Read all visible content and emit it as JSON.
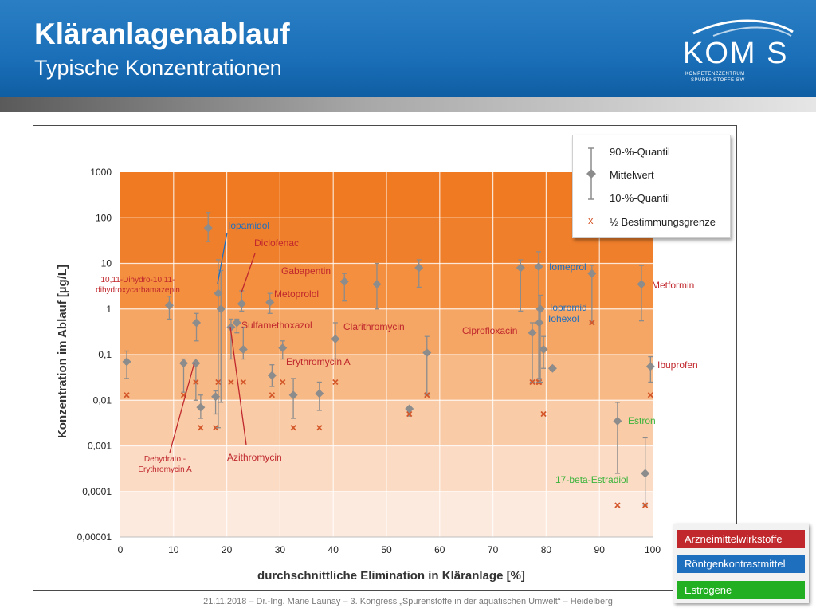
{
  "header": {
    "title": "Kläranlagenablauf",
    "subtitle": "Typische Konzentrationen",
    "logo_text": "KOM S",
    "logo_sub1": "KOMPETENZZENTRUM",
    "logo_sub2": "SPURENSTOFFE-BW"
  },
  "colors": {
    "pharma": "#c0282d",
    "contrast": "#1f6fbf",
    "estrogen": "#3cb43c",
    "marker": "#8c8c8c",
    "detection_limit": "#d4572a"
  },
  "legend": {
    "q90": "90-%-Quantil",
    "mean": "Mittelwert",
    "q10": "10-%-Quantil",
    "half_limit_symbol": "x",
    "half_limit": "½ Bestimmungsgrenze"
  },
  "categories": [
    {
      "label": "Arzneimittelwirkstoffe",
      "color": "#c0282d"
    },
    {
      "label": "Röntgenkontrastmittel",
      "color": "#1f6fbf"
    },
    {
      "label": "Estrogene",
      "color": "#22b022"
    }
  ],
  "footer": "21.11.2018 – Dr.-Ing. Marie Launay – 3. Kongress „Spurenstoffe in der aquatischen Umwelt“ – Heidelberg",
  "chart_data": {
    "type": "scatter",
    "xlabel": "durchschnittliche Elimination in Kläranlage [%]",
    "ylabel": "Konzentration im Ablauf [µg/L]",
    "xlim": [
      0,
      100
    ],
    "ylim": [
      1e-05,
      1000
    ],
    "yscale": "log",
    "x_ticks": [
      "0",
      "10",
      "20",
      "30",
      "40",
      "50",
      "60",
      "70",
      "80",
      "90",
      "100"
    ],
    "y_ticks": [
      "0,00001",
      "0,0001",
      "0,001",
      "0,01",
      "0,1",
      "1",
      "10",
      "100",
      "1000"
    ],
    "points": [
      {
        "x": 1.2,
        "mean": 0.07,
        "q10": 0.03,
        "q90": 0.12,
        "limit": 0.013
      },
      {
        "x": 9.2,
        "mean": 1.2,
        "q10": 0.6,
        "q90": 1.9,
        "limit": null
      },
      {
        "x": 11.9,
        "mean": 0.065,
        "q10": 0.015,
        "q90": 0.08,
        "limit": 0.013
      },
      {
        "x": 14.2,
        "mean": 0.065,
        "q10": 0.01,
        "q90": 0.07,
        "limit": 0.025
      },
      {
        "x": 14.3,
        "mean": 0.5,
        "q10": 0.2,
        "q90": 0.8,
        "limit": null
      },
      {
        "x": 15.1,
        "mean": 0.007,
        "q10": 0.004,
        "q90": 0.013,
        "limit": 0.0025
      },
      {
        "x": 16.5,
        "mean": 60,
        "q10": 30,
        "q90": 130,
        "limit": null
      },
      {
        "x": 17.9,
        "mean": 0.012,
        "q10": 0.005,
        "q90": 0.016,
        "limit": 0.0025
      },
      {
        "x": 18.4,
        "mean": 2.2,
        "q10": 0.0025,
        "q90": 12,
        "limit": 0.025
      },
      {
        "x": 18.9,
        "mean": 1.0,
        "q10": 0.009,
        "q90": 7,
        "limit": null
      },
      {
        "x": 20.8,
        "mean": 0.4,
        "q10": 0.08,
        "q90": 0.6,
        "limit": 0.025
      },
      {
        "x": 21.9,
        "mean": 0.5,
        "q10": 0.3,
        "q90": 0.6,
        "limit": null
      },
      {
        "x": 22.8,
        "mean": 1.3,
        "q10": 0.9,
        "q90": 2.5,
        "limit": null
      },
      {
        "x": 23.1,
        "mean": 0.13,
        "q10": 0.08,
        "q90": 0.4,
        "limit": 0.025
      },
      {
        "x": 28.1,
        "mean": 1.4,
        "q10": 0.8,
        "q90": 2.2,
        "limit": null
      },
      {
        "x": 28.5,
        "mean": 0.035,
        "q10": 0.02,
        "q90": 0.06,
        "limit": 0.013
      },
      {
        "x": 30.5,
        "mean": 0.14,
        "q10": 0.08,
        "q90": 0.2,
        "limit": 0.025
      },
      {
        "x": 32.5,
        "mean": 0.013,
        "q10": 0.004,
        "q90": 0.03,
        "limit": 0.0025
      },
      {
        "x": 37.4,
        "mean": 0.014,
        "q10": 0.006,
        "q90": 0.025,
        "limit": 0.0025
      },
      {
        "x": 40.4,
        "mean": 0.22,
        "q10": 0.08,
        "q90": 0.5,
        "limit": 0.025
      },
      {
        "x": 42.1,
        "mean": 4,
        "q10": 1.5,
        "q90": 6,
        "limit": null
      },
      {
        "x": 48.2,
        "mean": 3.5,
        "q10": 1.0,
        "q90": 10,
        "limit": null
      },
      {
        "x": 54.3,
        "mean": 0.0065,
        "q10": 0.0045,
        "q90": 0.007,
        "limit": 0.005
      },
      {
        "x": 56.1,
        "mean": 8,
        "q10": 3,
        "q90": 12,
        "limit": null
      },
      {
        "x": 57.6,
        "mean": 0.11,
        "q10": 0.013,
        "q90": 0.25,
        "limit": 0.013
      },
      {
        "x": 75.2,
        "mean": 8,
        "q10": 0.9,
        "q90": 12,
        "limit": null
      },
      {
        "x": 77.4,
        "mean": 0.3,
        "q10": 0.025,
        "q90": 0.5,
        "limit": 0.025
      },
      {
        "x": 78.6,
        "mean": 8.5,
        "q10": 0.025,
        "q90": 18,
        "limit": 0.025
      },
      {
        "x": 78.7,
        "mean": 0.5,
        "q10": 0.03,
        "q90": 1.0,
        "limit": 0.025
      },
      {
        "x": 78.9,
        "mean": 1.0,
        "q10": 0.025,
        "q90": 2.0,
        "limit": null
      },
      {
        "x": 79.5,
        "mean": 0.13,
        "q10": 0.05,
        "q90": 0.25,
        "limit": 0.005
      },
      {
        "x": 81.2,
        "mean": 0.05,
        "q10": 0.045,
        "q90": 0.055,
        "limit": 0.05
      },
      {
        "x": 88.6,
        "mean": 6,
        "q10": 0.5,
        "q90": 9,
        "limit": 0.5
      },
      {
        "x": 93.4,
        "mean": 0.0035,
        "q10": 0.00025,
        "q90": 0.009,
        "limit": 5e-05
      },
      {
        "x": 97.9,
        "mean": 3.5,
        "q10": 0.55,
        "q90": 9,
        "limit": null
      },
      {
        "x": 98.6,
        "mean": 0.00025,
        "q10": 5e-05,
        "q90": 0.0015,
        "limit": 5e-05
      },
      {
        "x": 99.6,
        "mean": 0.055,
        "q10": 0.025,
        "q90": 0.09,
        "limit": 0.013
      }
    ],
    "annotations": [
      {
        "text": "Iopamidol",
        "group": "contrast"
      },
      {
        "text": "Diclofenac",
        "group": "pharma"
      },
      {
        "text": "Gabapentin",
        "group": "pharma"
      },
      {
        "text": "10,11-Dihydro-10,11-",
        "group": "pharma"
      },
      {
        "text": "dihydroxycarbamazepin",
        "group": "pharma"
      },
      {
        "text": "Metoprolol",
        "group": "pharma"
      },
      {
        "text": "Sulfamethoxazol",
        "group": "pharma"
      },
      {
        "text": "Clarithromycin",
        "group": "pharma"
      },
      {
        "text": "Erythromycin A",
        "group": "pharma"
      },
      {
        "text": "Dehydrato -",
        "group": "pharma"
      },
      {
        "text": "Erythromycin A",
        "group": "pharma"
      },
      {
        "text": "Azithromycin",
        "group": "pharma"
      },
      {
        "text": "Iomeprol",
        "group": "contrast"
      },
      {
        "text": "Iopromid",
        "group": "contrast"
      },
      {
        "text": "Iohexol",
        "group": "contrast"
      },
      {
        "text": "Ciprofloxacin",
        "group": "pharma"
      },
      {
        "text": "Metformin",
        "group": "pharma"
      },
      {
        "text": "Ibuprofen",
        "group": "pharma"
      },
      {
        "text": "Estron",
        "group": "estrogen"
      },
      {
        "text": "17-beta-Estradiol",
        "group": "estrogen"
      }
    ]
  }
}
